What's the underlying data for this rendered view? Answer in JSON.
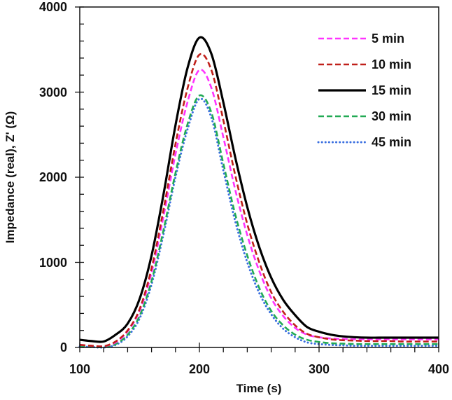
{
  "chart_data": {
    "type": "line",
    "title": "",
    "xlabel": "Time (s)",
    "ylabel": "Impedance (real), Z' (Ω)",
    "xlim": [
      100,
      400
    ],
    "ylim": [
      0,
      4000
    ],
    "xticks": [
      "100",
      "200",
      "300",
      "400"
    ],
    "yticks": [
      "0",
      "1000",
      "2000",
      "3000",
      "4000"
    ],
    "grid": false,
    "legend_position": "top-right",
    "x": [
      100,
      110,
      120,
      130,
      140,
      150,
      160,
      170,
      180,
      190,
      200,
      210,
      220,
      230,
      240,
      250,
      260,
      270,
      280,
      290,
      300,
      310,
      320,
      330,
      340,
      350,
      360,
      370,
      380,
      390,
      400
    ],
    "series": [
      {
        "name": "5 min",
        "color": "#ff33ff",
        "style": "dashed",
        "values": [
          30,
          20,
          15,
          60,
          190,
          430,
          880,
          1540,
          2270,
          2880,
          3260,
          3050,
          2470,
          1850,
          1320,
          900,
          580,
          370,
          230,
          150,
          120,
          105,
          100,
          95,
          95,
          95,
          95,
          95,
          95,
          95,
          95
        ]
      },
      {
        "name": "10 min",
        "color": "#c0201a",
        "style": "dashed",
        "values": [
          30,
          20,
          15,
          70,
          200,
          450,
          930,
          1620,
          2390,
          3040,
          3440,
          3260,
          2670,
          2020,
          1450,
          1000,
          650,
          420,
          260,
          160,
          120,
          95,
          85,
          80,
          75,
          75,
          75,
          70,
          70,
          70,
          70
        ]
      },
      {
        "name": "15 min",
        "color": "#000000",
        "style": "solid",
        "values": [
          90,
          75,
          70,
          150,
          280,
          570,
          1080,
          1800,
          2610,
          3280,
          3640,
          3450,
          2880,
          2230,
          1650,
          1180,
          820,
          560,
          380,
          240,
          185,
          150,
          130,
          120,
          115,
          115,
          115,
          115,
          115,
          115,
          115
        ]
      },
      {
        "name": "30 min",
        "color": "#22aa55",
        "style": "dashed",
        "values": [
          20,
          10,
          5,
          40,
          150,
          370,
          780,
          1380,
          2050,
          2620,
          2960,
          2760,
          2160,
          1560,
          1080,
          700,
          430,
          260,
          150,
          90,
          65,
          50,
          45,
          40,
          40,
          40,
          40,
          40,
          40,
          40,
          40
        ]
      },
      {
        "name": "45 min",
        "color": "#3a6fe0",
        "style": "dotted",
        "values": [
          10,
          5,
          0,
          30,
          130,
          340,
          740,
          1330,
          2000,
          2560,
          2920,
          2700,
          2080,
          1480,
          1000,
          640,
          390,
          220,
          120,
          60,
          40,
          30,
          25,
          20,
          20,
          20,
          20,
          20,
          20,
          20,
          20
        ]
      }
    ]
  }
}
